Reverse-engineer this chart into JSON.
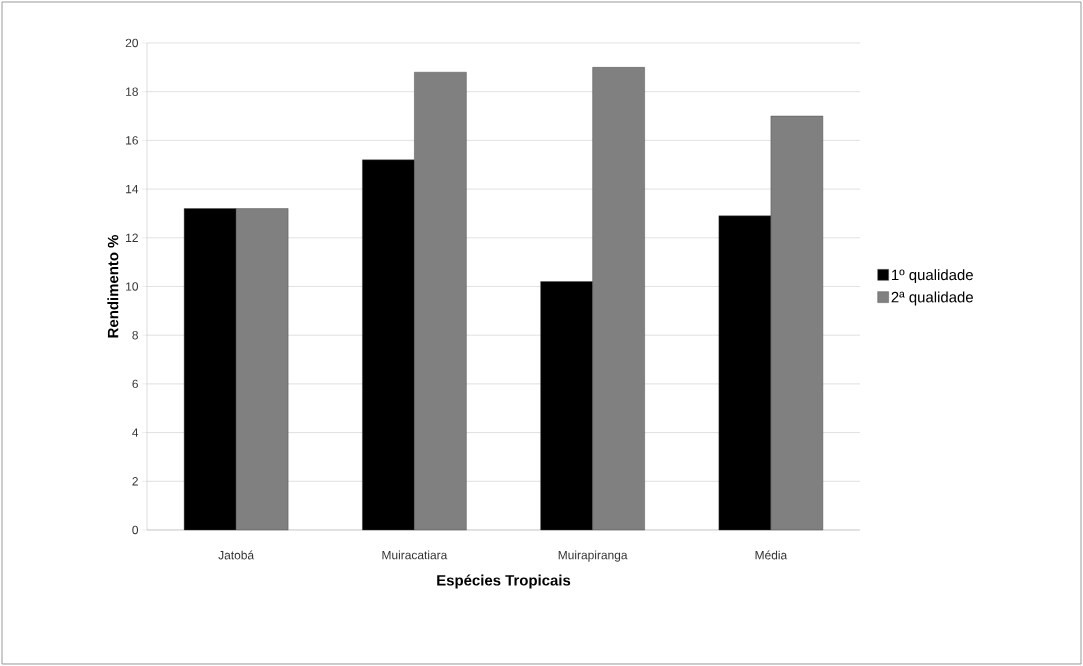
{
  "chart_data": {
    "type": "bar",
    "xlabel": "Espécies Tropicais",
    "ylabel": "Rendimento %",
    "categories": [
      "Jatobá",
      "Muiracatiara",
      "Muirapiranga",
      "Média"
    ],
    "series": [
      {
        "name": "1º qualidade",
        "color": "#000000",
        "values": [
          13.2,
          15.2,
          10.2,
          12.9
        ]
      },
      {
        "name": "2ª qualidade",
        "color": "#808080",
        "values": [
          13.2,
          18.8,
          19.0,
          17.0
        ]
      }
    ],
    "ylim": [
      0,
      20
    ],
    "yticks": [
      0,
      2,
      4,
      6,
      8,
      10,
      12,
      14,
      16,
      18,
      20
    ],
    "grid": "y",
    "legend": "right"
  }
}
